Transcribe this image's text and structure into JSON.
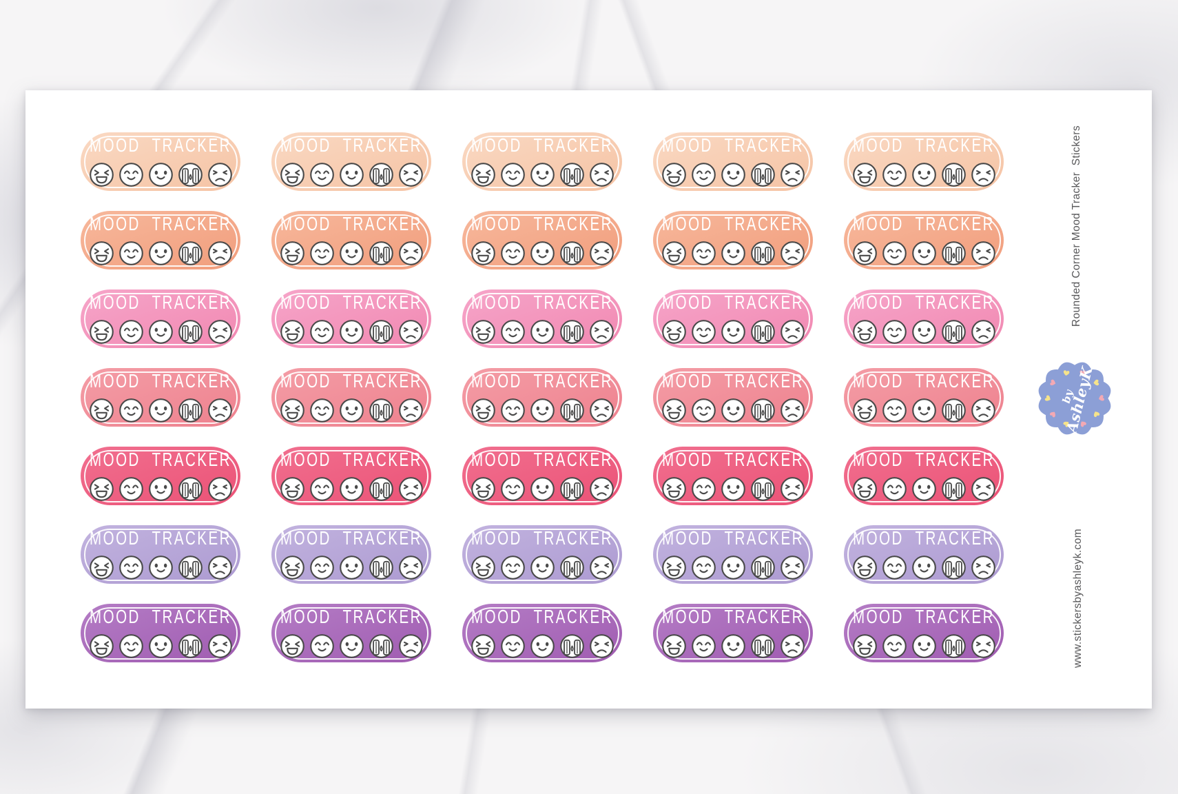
{
  "product": {
    "sheet": {
      "sticker_title": "MOOD TRACKER",
      "title_color": "#ffffff",
      "columns": 5,
      "face_outline": "#4a4a4a",
      "faces": [
        "laughing",
        "happy",
        "content",
        "crying",
        "angry"
      ],
      "rows": [
        {
          "name": "peach",
          "fill_light": "#fad9c3",
          "fill_dark": "#f5c3a4"
        },
        {
          "name": "salmon",
          "fill_light": "#f7b89c",
          "fill_dark": "#f19d7c"
        },
        {
          "name": "pink",
          "fill_light": "#f6a5c9",
          "fill_dark": "#f188b1"
        },
        {
          "name": "coral",
          "fill_light": "#f49da6",
          "fill_dark": "#ee818e"
        },
        {
          "name": "raspberry",
          "fill_light": "#f16f8f",
          "fill_dark": "#eb5276"
        },
        {
          "name": "lavender",
          "fill_light": "#c2b3df",
          "fill_dark": "#ac9ad1"
        },
        {
          "name": "purple",
          "fill_light": "#b47cc5",
          "fill_dark": "#a05cb1"
        }
      ]
    },
    "side": {
      "product_label": "Rounded Corner Mood Tracker  Stickers",
      "website": "www.stickersbyashleyk.com",
      "text_color": "#58585a",
      "badge": {
        "line1": "by",
        "line2": "AshleyK",
        "bg_color": "#8c9fd6",
        "heart_pink": "#f3a9b4",
        "heart_yellow": "#f6e38b"
      }
    }
  }
}
